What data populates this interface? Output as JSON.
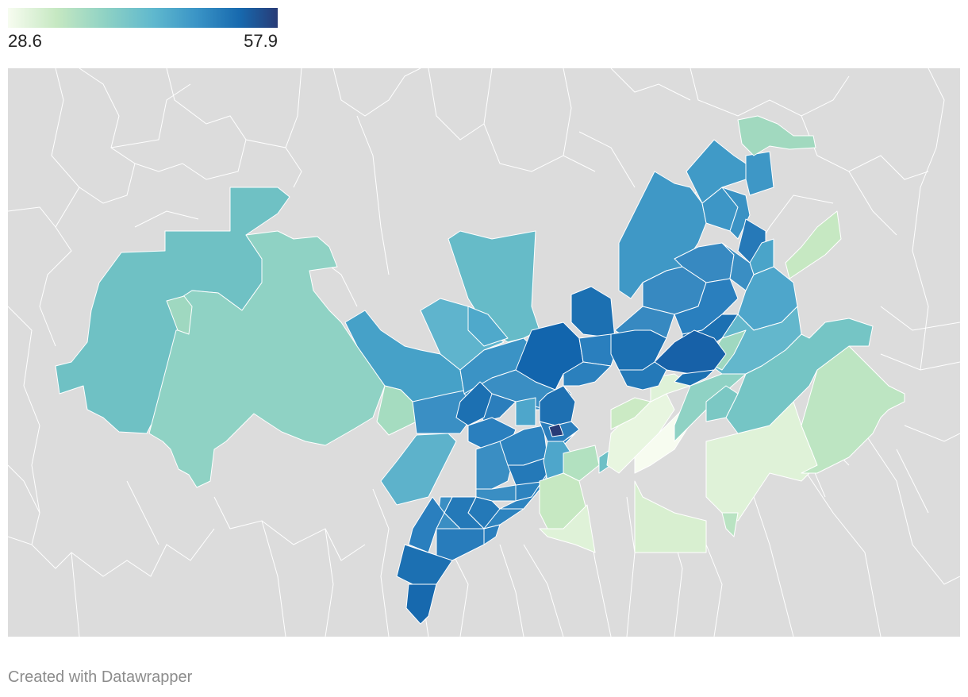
{
  "legend": {
    "min_label": "28.6",
    "max_label": "57.9",
    "min_value": 28.6,
    "max_value": 57.9,
    "colors": [
      "#f7fcf0",
      "#c6e8c2",
      "#8fd2c4",
      "#5fb8ce",
      "#3a94c6",
      "#1769ae",
      "#283b76"
    ]
  },
  "map": {
    "background_color": "#dcdcdc",
    "border_color": "#ffffff"
  },
  "credit": {
    "text": "Created with Datawrapper"
  }
}
